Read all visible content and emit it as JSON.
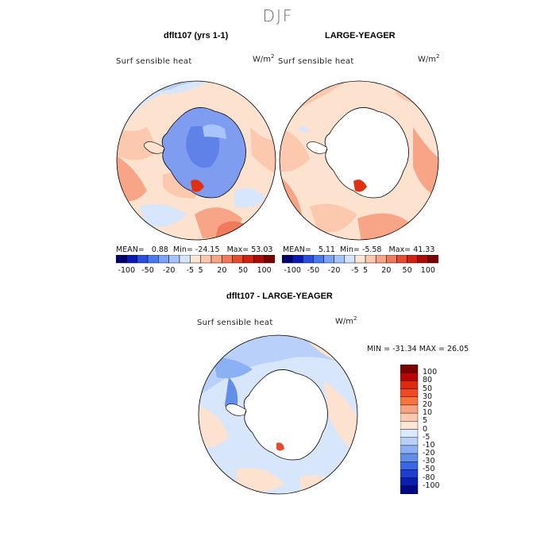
{
  "header": {
    "season": "DJF"
  },
  "panels": [
    {
      "title": "dflt107 (yrs 1-1)",
      "variable": "Surf sensible heat",
      "units": "W/m",
      "units_exp": "2",
      "stats": {
        "mean_label": "MEAN=",
        "mean": "0.88",
        "min_label": "Min=",
        "min": "-24.15",
        "max_label": "Max=",
        "max": "53.03"
      }
    },
    {
      "title": "LARGE-YEAGER",
      "variable": "Surf sensible heat",
      "units": "W/m",
      "units_exp": "2",
      "stats": {
        "mean_label": "MEAN=",
        "mean": "5.11",
        "min_label": "Min=",
        "min": "-5.58",
        "max_label": "Max=",
        "max": "41.33"
      }
    },
    {
      "title": "dflt107 - LARGE-YEAGER",
      "variable": "Surf sensible heat",
      "units": "W/m",
      "units_exp": "2",
      "stats_text": "MIN = -31.34  MAX =  26.05"
    }
  ],
  "top_colorbar": {
    "labels": [
      "-100",
      "-50",
      "-20",
      "-5",
      "5",
      "20",
      "50",
      "100"
    ],
    "colors": [
      "#00006e",
      "#0a18b4",
      "#2a4fe0",
      "#4a7af0",
      "#7ea2f8",
      "#a9c4fb",
      "#d4e4fd",
      "#fde6d6",
      "#fcc8ae",
      "#f8a487",
      "#f27a5c",
      "#e84a2c",
      "#d42010",
      "#ae0a08",
      "#780000"
    ]
  },
  "diff_colorbar": {
    "labels": [
      "100",
      "80",
      "50",
      "30",
      "20",
      "10",
      "5",
      "0",
      "-5",
      "-10",
      "-20",
      "-30",
      "-50",
      "-80",
      "-100"
    ],
    "colors": [
      "#7a0000",
      "#b80606",
      "#e02a10",
      "#f04a24",
      "#f6763e",
      "#f8a283",
      "#fbc8b0",
      "#fde6d8",
      "#dce8fc",
      "#b8cff8",
      "#8cb0f4",
      "#628ee8",
      "#3a66e0",
      "#1e3ed0",
      "#0a1eb0",
      "#000a80"
    ]
  },
  "palette": {
    "land_blue": "#7f9df0",
    "ocean_warm": "#fde2d0",
    "ocean_warm2": "#fcc8ae",
    "ocean_cool": "#d8e6fc",
    "coast": "#000000",
    "hot_spot": "#e03010"
  }
}
